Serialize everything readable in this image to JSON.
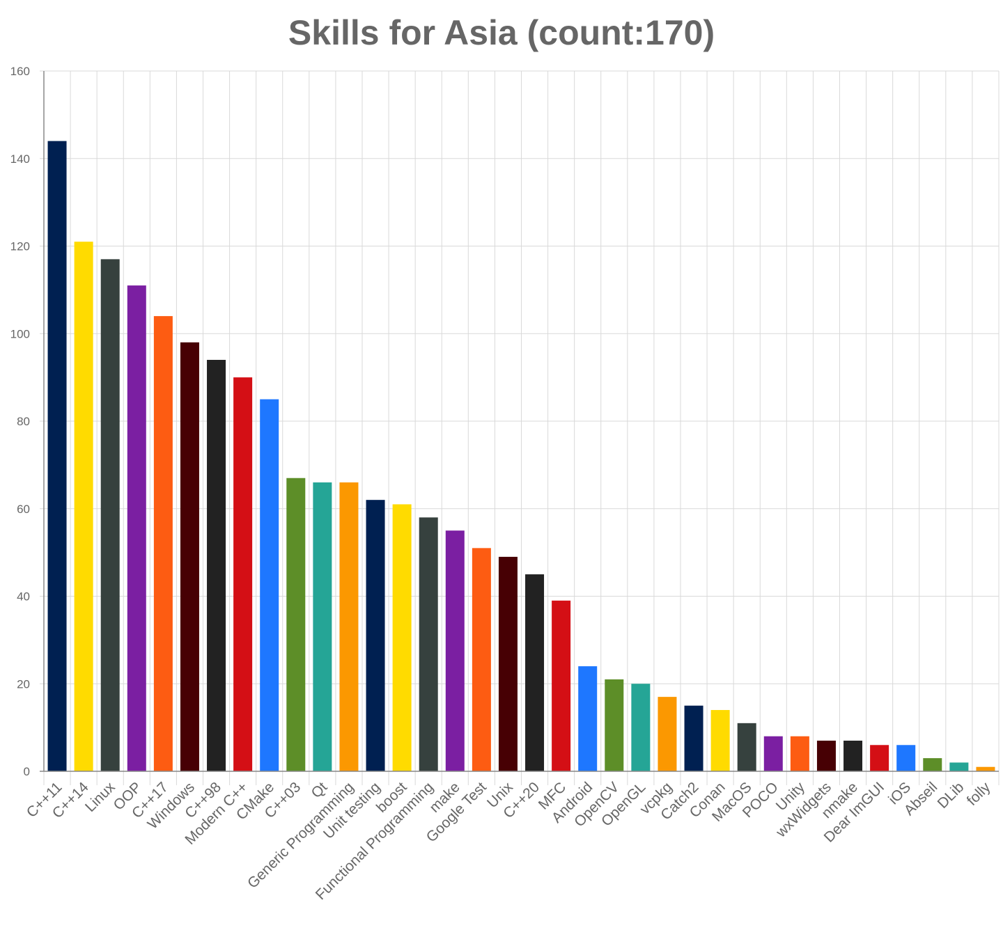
{
  "chart_data": {
    "type": "bar",
    "title": "Skills for Asia (count:170)",
    "xlabel": "",
    "ylabel": "",
    "ylim": [
      0,
      160
    ],
    "yticks": [
      "0",
      "20",
      "40",
      "60",
      "80",
      "100",
      "120",
      "140",
      "160"
    ],
    "grid": true,
    "categories": [
      "C++11",
      "C++14",
      "Linux",
      "OOP",
      "C++17",
      "Windows",
      "C++98",
      "Modern C++",
      "CMake",
      "C++03",
      "Qt",
      "Generic Programming",
      "Unit testing",
      "boost",
      "Functional Programming",
      "make",
      "Google Test",
      "Unix",
      "C++20",
      "MFC",
      "Android",
      "OpenCV",
      "OpenGL",
      "vcpkg",
      "Catch2",
      "Conan",
      "MacOS",
      "POCO",
      "Unity",
      "wxWidgets",
      "nmake",
      "Dear ImGUI",
      "iOS",
      "Abseil",
      "DLib",
      "folly"
    ],
    "values": [
      144,
      121,
      117,
      111,
      104,
      98,
      94,
      90,
      85,
      67,
      66,
      66,
      62,
      61,
      58,
      55,
      51,
      49,
      45,
      39,
      24,
      21,
      20,
      17,
      15,
      14,
      11,
      8,
      8,
      7,
      7,
      6,
      6,
      3,
      2,
      1
    ],
    "colors": [
      "#002051",
      "#ffdb00",
      "#36413e",
      "#7b1fa2",
      "#fd5c12",
      "#470004",
      "#222222",
      "#d40f15",
      "#1e77ff",
      "#5d8e28",
      "#25a596",
      "#fb9801"
    ]
  }
}
